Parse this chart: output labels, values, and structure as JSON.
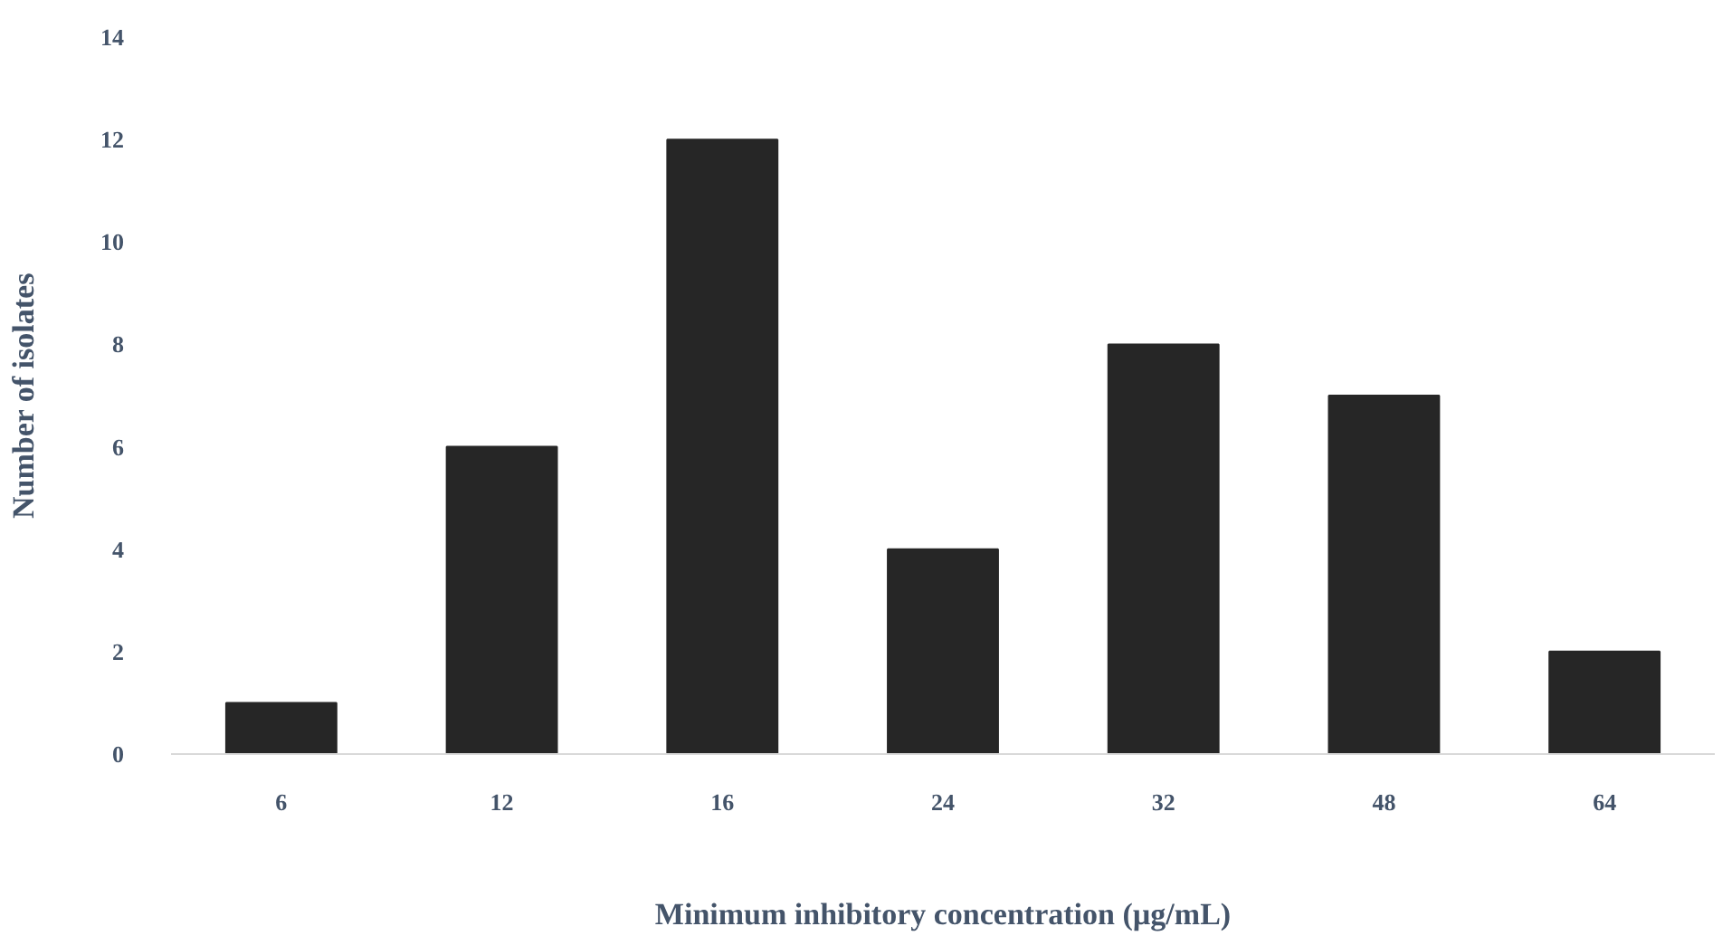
{
  "chart_data": {
    "type": "bar",
    "xlabel": "Minimum inhibitory concentration (µg/mL)",
    "ylabel": "Number of isolates",
    "categories": [
      "6",
      "12",
      "16",
      "24",
      "32",
      "48",
      "64"
    ],
    "values": [
      1,
      6,
      12,
      4,
      8,
      7,
      2
    ],
    "color": "#262626",
    "ylim": [
      0,
      14
    ],
    "yticks": [
      0,
      2,
      4,
      6,
      8,
      10,
      12,
      14
    ],
    "grid": false
  }
}
